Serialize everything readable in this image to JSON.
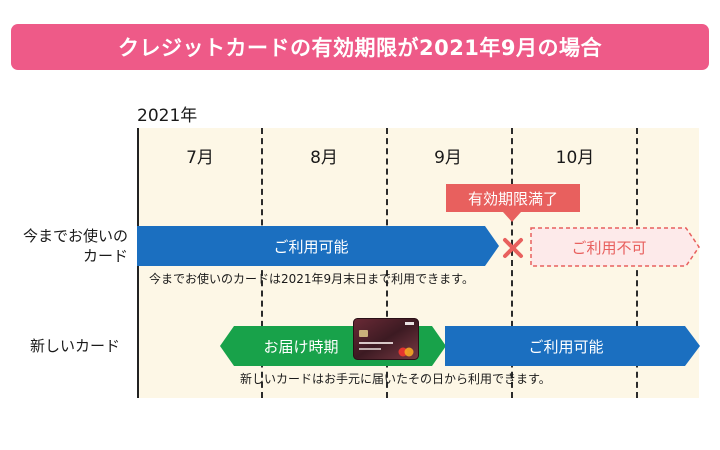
{
  "banner": {
    "title": "クレジットカードの有効期限が2021年9月の場合"
  },
  "timeline": {
    "year": "2021年",
    "months": [
      "7月",
      "8月",
      "9月",
      "10月"
    ]
  },
  "rows": {
    "current": {
      "label_line1": "今までお使いの",
      "label_line2": "カード",
      "usable_label": "ご利用可能",
      "expired_callout": "有効期限満了",
      "unusable_label": "ご利用不可",
      "note": "今までお使いのカードは2021年9月末日まで利用できます。"
    },
    "new": {
      "label": "新しいカード",
      "delivery_label": "お届け時期",
      "usable_label": "ご利用可能",
      "note": "新しいカードはお手元に届いたその日から利用できます。"
    }
  },
  "colors": {
    "banner": "#ee5a88",
    "usable_blue": "#1b6fc0",
    "delivery_green": "#18a24a",
    "expired_red": "#e8605e",
    "timeline_bg": "#fdf7e6"
  },
  "icons": {
    "expired_mark": "x-mark-icon",
    "card": "credit-card-icon"
  }
}
